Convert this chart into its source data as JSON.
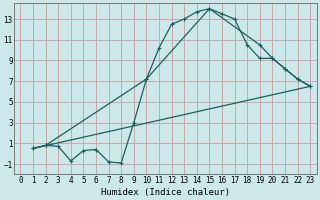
{
  "title": "",
  "xlabel": "Humidex (Indice chaleur)",
  "bg_color": "#cce8e8",
  "grid_color": "#c8a8a8",
  "line_color": "#1a6060",
  "xlim": [
    -0.5,
    23.5
  ],
  "ylim": [
    -2.0,
    14.5
  ],
  "xticks": [
    0,
    1,
    2,
    3,
    4,
    5,
    6,
    7,
    8,
    9,
    10,
    11,
    12,
    13,
    14,
    15,
    16,
    17,
    18,
    19,
    20,
    21,
    22,
    23
  ],
  "yticks": [
    -1,
    1,
    3,
    5,
    7,
    9,
    11,
    13
  ],
  "line1_x": [
    1,
    2,
    3,
    4,
    5,
    6,
    7,
    8,
    9,
    10,
    11,
    12,
    13,
    14,
    15,
    16,
    17,
    18,
    19,
    20,
    21,
    22,
    23
  ],
  "line1_y": [
    0.5,
    0.8,
    0.7,
    -0.7,
    0.3,
    0.4,
    -0.8,
    -0.9,
    3.0,
    7.2,
    10.2,
    12.5,
    13.0,
    13.7,
    14.0,
    13.5,
    13.0,
    10.5,
    9.2,
    9.2,
    8.2,
    7.2,
    6.5
  ],
  "line2_x": [
    1,
    2,
    10,
    15,
    19,
    20,
    21,
    22,
    23
  ],
  "line2_y": [
    0.5,
    0.8,
    7.2,
    14.0,
    10.5,
    9.2,
    8.2,
    7.2,
    6.5
  ],
  "line3_x": [
    1,
    23
  ],
  "line3_y": [
    0.5,
    6.5
  ]
}
